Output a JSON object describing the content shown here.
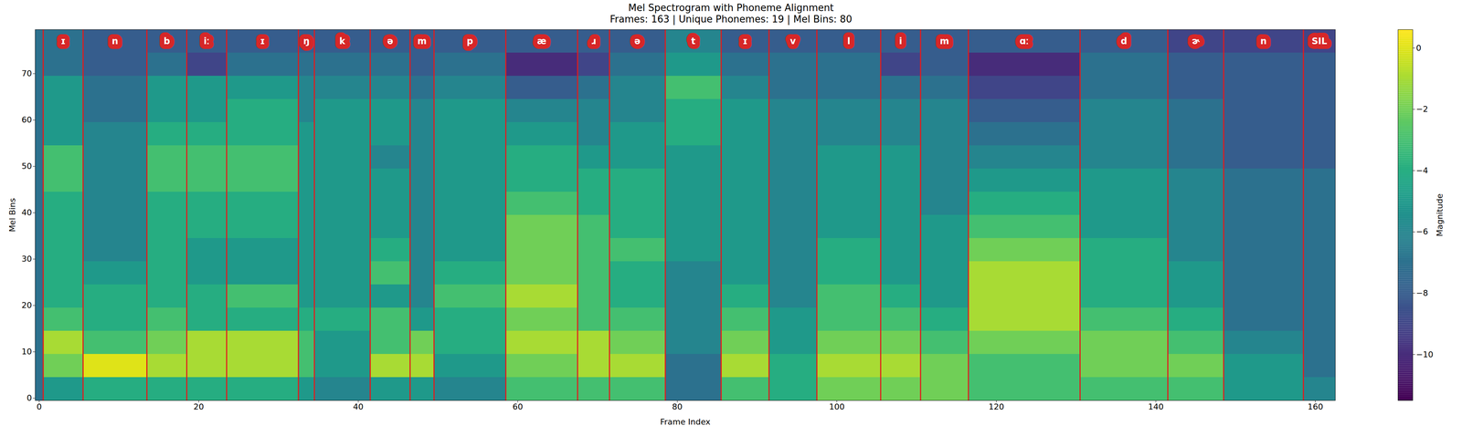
{
  "chart_data": {
    "type": "heatmap",
    "title": "Mel Spectrogram with Phoneme Alignment",
    "subtitle": "Frames: 163 | Unique Phonemes: 19 | Mel Bins: 80",
    "x_label": "Frame Index",
    "y_label": "Mel Bins",
    "xlim": [
      -0.5,
      162.5
    ],
    "ylim": [
      -0.5,
      79.5
    ],
    "xticks": [
      0,
      20,
      40,
      60,
      80,
      100,
      120,
      140,
      160
    ],
    "yticks": [
      0,
      10,
      20,
      30,
      40,
      50,
      60,
      70
    ],
    "color": "viridis",
    "phoneme_boundaries": [
      0.5,
      5.5,
      13.5,
      18.5,
      23.5,
      32.5,
      34.5,
      41.5,
      46.5,
      49.5,
      58.5,
      67.5,
      71.5,
      78.5,
      85.5,
      91.5,
      97.5,
      105.5,
      110.5,
      116.5,
      130.5,
      141.5,
      148.5,
      158.5
    ],
    "phonemes": [
      "ɪ",
      "n",
      "b",
      "iː",
      "ɪ",
      "ŋ",
      "k",
      "ə",
      "m",
      "p",
      "æ",
      "ɹ",
      "ə",
      "t",
      "ɪ",
      "v",
      "l",
      "i",
      "m",
      "ɑː",
      "d",
      "ɚ",
      "n",
      "SIL"
    ],
    "cells": {
      "frame_edges": [
        -0.5,
        0.5,
        5.5,
        13.5,
        18.5,
        23.5,
        32.5,
        34.5,
        41.5,
        46.5,
        49.5,
        58.5,
        67.5,
        71.5,
        78.5,
        85.5,
        91.5,
        97.5,
        105.5,
        110.5,
        116.5,
        130.5,
        141.5,
        148.5,
        158.5,
        162.5
      ],
      "mel_edges": [
        -0.5,
        4.5,
        9.5,
        14.5,
        19.5,
        24.5,
        29.5,
        34.5,
        39.5,
        44.5,
        49.5,
        54.5,
        59.5,
        64.5,
        69.5,
        74.5,
        79.5
      ],
      "values": [
        [
          -7,
          -7,
          -7,
          -7,
          -7,
          -7,
          -7,
          -7,
          -7,
          -7,
          -7,
          -7,
          -7,
          -7,
          -7,
          -7
        ],
        [
          -5,
          -2,
          -1,
          -3,
          -4,
          -4,
          -4,
          -4,
          -4,
          -3,
          -3,
          -5,
          -5,
          -5,
          -7,
          -7
        ],
        [
          -4,
          0,
          -3,
          -4,
          -4,
          -5,
          -6,
          -6,
          -6,
          -6,
          -6,
          -6,
          -7,
          -7,
          -8,
          -8
        ],
        [
          -4,
          -1,
          -2,
          -3,
          -4,
          -4,
          -4,
          -4,
          -4,
          -3,
          -3,
          -4,
          -5,
          -5,
          -7,
          -8
        ],
        [
          -4,
          -1,
          -1,
          -4,
          -4,
          -5,
          -5,
          -4,
          -4,
          -3,
          -3,
          -4,
          -5,
          -5,
          -9,
          -8
        ],
        [
          -4,
          -1,
          -1,
          -4,
          -3,
          -5,
          -5,
          -4,
          -4,
          -3,
          -3,
          -4,
          -4,
          -5,
          -7,
          -8
        ],
        [
          -5,
          -3,
          -3,
          -4,
          -5,
          -5,
          -5,
          -5,
          -5,
          -5,
          -5,
          -5,
          -6,
          -6,
          -7,
          -8
        ],
        [
          -6,
          -5,
          -5,
          -4,
          -5,
          -5,
          -5,
          -5,
          -5,
          -5,
          -5,
          -5,
          -5,
          -6,
          -7,
          -8
        ],
        [
          -5,
          -1,
          -3,
          -3,
          -5,
          -3,
          -4,
          -5,
          -5,
          -5,
          -6,
          -5,
          -5,
          -6,
          -7,
          -8
        ],
        [
          -5,
          -1,
          -2,
          -5,
          -6,
          -6,
          -6,
          -6,
          -6,
          -6,
          -6,
          -6,
          -6,
          -7,
          -8,
          -8
        ],
        [
          -6,
          -5,
          -4,
          -4,
          -3,
          -4,
          -5,
          -5,
          -5,
          -5,
          -5,
          -5,
          -5,
          -6,
          -7,
          -8
        ],
        [
          -3,
          -2,
          -1,
          -2,
          -1,
          -2,
          -2,
          -2,
          -3,
          -4,
          -4,
          -5,
          -6,
          -8,
          -10,
          -8
        ],
        [
          -3,
          -1,
          -1,
          -3,
          -3,
          -3,
          -3,
          -3,
          -4,
          -4,
          -5,
          -6,
          -6,
          -7,
          -9,
          -8
        ],
        [
          -3,
          -1,
          -2,
          -3,
          -4,
          -4,
          -3,
          -4,
          -4,
          -4,
          -5,
          -5,
          -6,
          -6,
          -7,
          -8
        ],
        [
          -7,
          -7,
          -6,
          -6,
          -6,
          -6,
          -5,
          -5,
          -5,
          -5,
          -5,
          -4,
          -4,
          -3,
          -5,
          -6
        ],
        [
          -3,
          -1,
          -2,
          -3,
          -4,
          -5,
          -5,
          -5,
          -5,
          -5,
          -5,
          -5,
          -5,
          -6,
          -7,
          -8
        ],
        [
          -4,
          -4,
          -5,
          -5,
          -6,
          -6,
          -6,
          -6,
          -6,
          -6,
          -6,
          -6,
          -6,
          -7,
          -7,
          -8
        ],
        [
          -2,
          -1,
          -2,
          -3,
          -3,
          -4,
          -4,
          -5,
          -5,
          -5,
          -5,
          -6,
          -6,
          -7,
          -7,
          -8
        ],
        [
          -2,
          -1,
          -2,
          -3,
          -4,
          -5,
          -5,
          -5,
          -5,
          -5,
          -5,
          -6,
          -6,
          -7,
          -9,
          -8
        ],
        [
          -2,
          -2,
          -3,
          -4,
          -5,
          -5,
          -5,
          -5,
          -6,
          -6,
          -6,
          -6,
          -6,
          -7,
          -8,
          -8
        ],
        [
          -3,
          -3,
          -2,
          -1,
          -1,
          -1,
          -2,
          -3,
          -4,
          -5,
          -6,
          -7,
          -8,
          -9,
          -10,
          -8
        ],
        [
          -3,
          -2,
          -2,
          -3,
          -4,
          -4,
          -4,
          -5,
          -5,
          -5,
          -6,
          -6,
          -6,
          -7,
          -7,
          -8
        ],
        [
          -3,
          -2,
          -3,
          -4,
          -5,
          -5,
          -6,
          -6,
          -6,
          -6,
          -7,
          -7,
          -7,
          -8,
          -8,
          -9
        ],
        [
          -5,
          -5,
          -6,
          -7,
          -7,
          -7,
          -7,
          -7,
          -7,
          -7,
          -8,
          -8,
          -8,
          -8,
          -8,
          -9
        ],
        [
          -6,
          -7,
          -7,
          -7,
          -7,
          -7,
          -7,
          -7,
          -7,
          -7,
          -8,
          -8,
          -8,
          -8,
          -8,
          -9
        ]
      ]
    },
    "colorbar": {
      "label": "Magnitude",
      "range": [
        -11.5,
        0.6
      ],
      "ticks": [
        {
          "value": 0,
          "label": "0"
        },
        {
          "value": -2,
          "label": "−2"
        },
        {
          "value": -4,
          "label": "−4"
        },
        {
          "value": -6,
          "label": "−6"
        },
        {
          "value": -8,
          "label": "−8"
        },
        {
          "value": -10,
          "label": "−10"
        }
      ]
    }
  }
}
